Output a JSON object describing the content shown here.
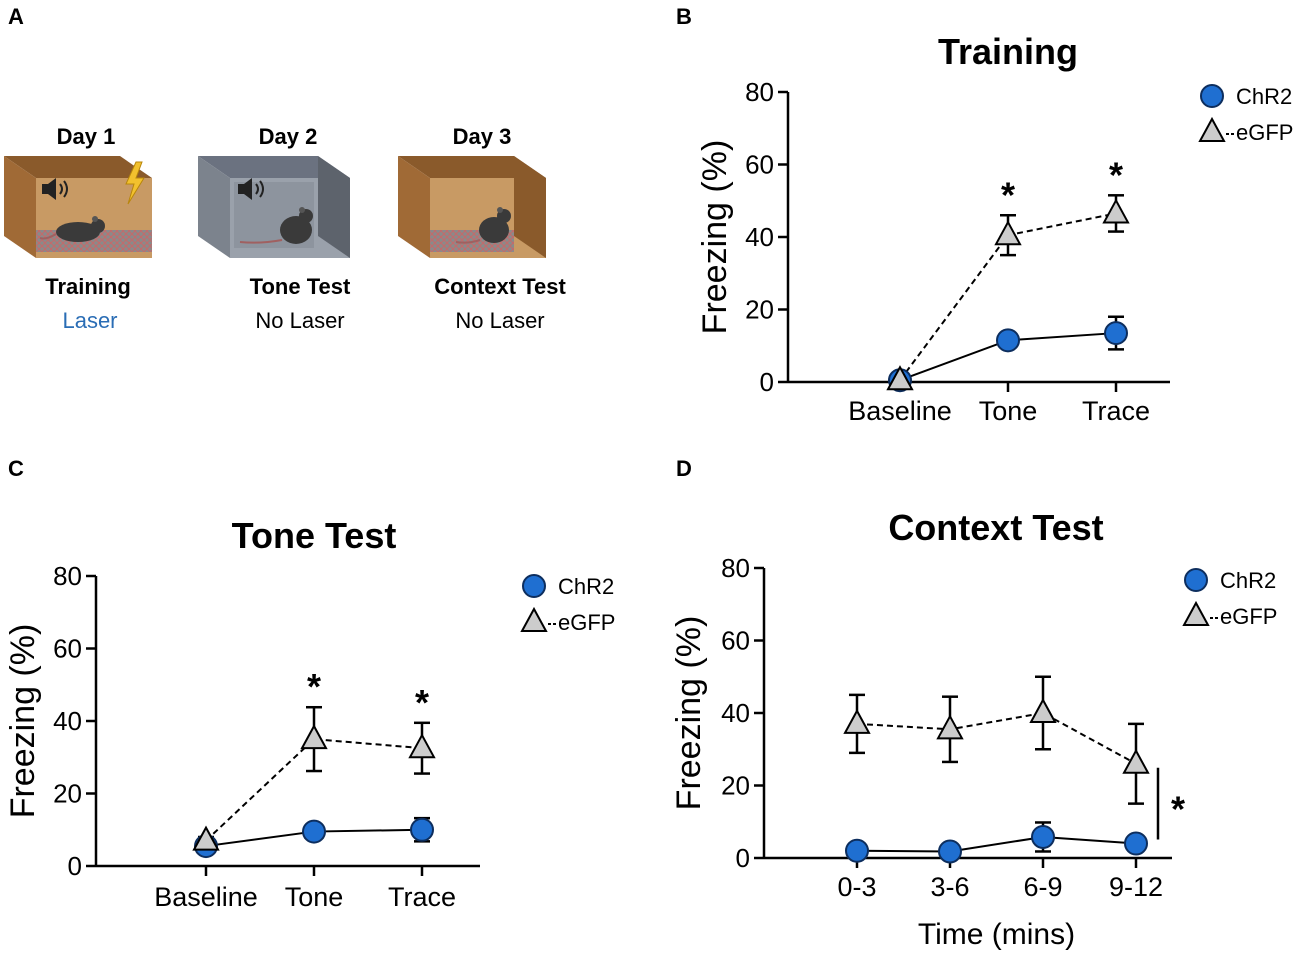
{
  "panels": {
    "a": "A",
    "b": "B",
    "c": "C",
    "d": "D"
  },
  "colors": {
    "chr2": "#1f6fd1",
    "egfp": "#cccccc",
    "laser_blue": "#2a6db5"
  },
  "schematic": {
    "days": [
      {
        "day": "Day 1",
        "phase": "Training",
        "laser": "Laser",
        "laser_on": true
      },
      {
        "day": "Day 2",
        "phase": "Tone Test",
        "laser": "No Laser",
        "laser_on": false
      },
      {
        "day": "Day 3",
        "phase": "Context Test",
        "laser": "No Laser",
        "laser_on": false
      }
    ],
    "icons": [
      "speaker-icon",
      "lightning-icon",
      "mouse-icon",
      "shock-grid-floor"
    ]
  },
  "chart_data": [
    {
      "panel": "B",
      "type": "line",
      "title": "Training",
      "xlabel": "",
      "ylabel": "Freezing (%)",
      "ylim": [
        0,
        80
      ],
      "yticks": [
        0,
        20,
        40,
        60,
        80
      ],
      "categories": [
        "Baseline",
        "Tone",
        "Trace"
      ],
      "highlight_categories": [
        "Tone",
        "Trace"
      ],
      "series": [
        {
          "name": "ChR2",
          "values": [
            0.5,
            11.5,
            13.5
          ],
          "errors": [
            0,
            0.8,
            4.5
          ]
        },
        {
          "name": "eGFP",
          "values": [
            0.5,
            40.5,
            46.5
          ],
          "errors": [
            0,
            5.5,
            5
          ]
        }
      ],
      "significance": [
        "",
        "*",
        "*"
      ],
      "legend": "top-right"
    },
    {
      "panel": "C",
      "type": "line",
      "title": "Tone Test",
      "xlabel": "",
      "ylabel": "Freezing (%)",
      "ylim": [
        0,
        80
      ],
      "yticks": [
        0,
        20,
        40,
        60,
        80
      ],
      "categories": [
        "Baseline",
        "Tone",
        "Trace"
      ],
      "highlight_categories": [],
      "series": [
        {
          "name": "ChR2",
          "values": [
            5.5,
            9.5,
            10
          ],
          "errors": [
            0,
            0.8,
            3.2
          ]
        },
        {
          "name": "eGFP",
          "values": [
            7,
            35,
            32.5
          ],
          "errors": [
            1,
            8.8,
            7
          ]
        }
      ],
      "significance": [
        "",
        "*",
        "*"
      ],
      "legend": "top-right"
    },
    {
      "panel": "D",
      "type": "line",
      "title": "Context Test",
      "xlabel": "Time (mins)",
      "ylabel": "Freezing (%)",
      "ylim": [
        0,
        80
      ],
      "yticks": [
        0,
        20,
        40,
        60,
        80
      ],
      "categories": [
        "0-3",
        "3-6",
        "6-9",
        "9-12"
      ],
      "highlight_categories": [],
      "series": [
        {
          "name": "ChR2",
          "values": [
            2,
            1.8,
            5.8,
            4
          ],
          "errors": [
            0.8,
            0.8,
            4,
            0.8
          ]
        },
        {
          "name": "eGFP",
          "values": [
            37,
            35.5,
            40,
            26
          ],
          "errors": [
            8,
            9,
            10,
            11
          ]
        }
      ],
      "significance": [],
      "bracket_star": "*",
      "legend": "top-right"
    }
  ]
}
